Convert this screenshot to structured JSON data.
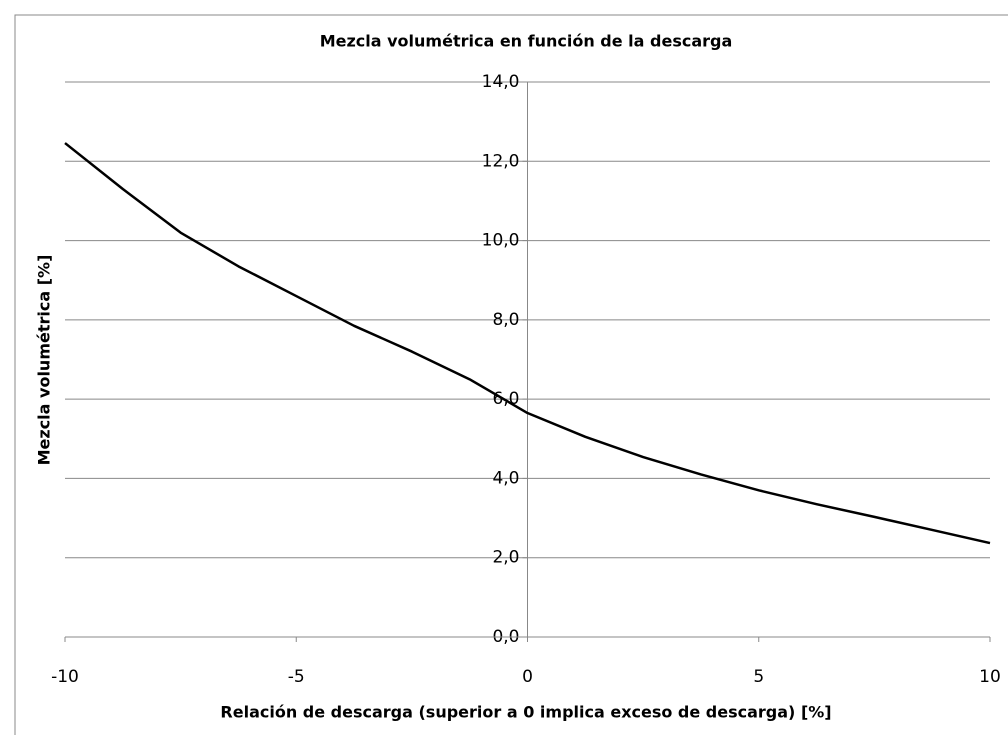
{
  "chart_data": {
    "type": "line",
    "title": "Mezcla volumétrica en función de la descarga",
    "x_label": "Relación de descarga (superior a 0 implica exceso de descarga) [%]",
    "y_label": "Mezcla volumétrica [%]",
    "x": [
      -10,
      -8.75,
      -7.5,
      -6.25,
      -5,
      -3.75,
      -2.5,
      -1.25,
      0,
      1.25,
      2.5,
      3.75,
      5,
      6.25,
      7.5,
      8.75,
      10
    ],
    "series": [
      {
        "name": "Mezcla volumétrica",
        "color": "#000000",
        "values": [
          12.46,
          11.3,
          10.2,
          9.35,
          8.6,
          7.85,
          7.2,
          6.5,
          5.65,
          5.05,
          4.54,
          4.1,
          3.7,
          3.35,
          3.03,
          2.7,
          2.37
        ]
      }
    ],
    "xlim": [
      -10,
      10
    ],
    "xticks": [
      -10,
      -5,
      0,
      5,
      10
    ],
    "ylim": [
      0,
      14
    ],
    "yticks": [
      {
        "value": 0,
        "label": "0,0"
      },
      {
        "value": 2,
        "label": "2,0"
      },
      {
        "value": 4,
        "label": "4,0"
      },
      {
        "value": 6,
        "label": "6,0"
      },
      {
        "value": 8,
        "label": "8,0"
      },
      {
        "value": 10,
        "label": "10,0"
      },
      {
        "value": 12,
        "label": "12,0"
      },
      {
        "value": 14,
        "label": "14,0"
      }
    ],
    "grid": true
  }
}
